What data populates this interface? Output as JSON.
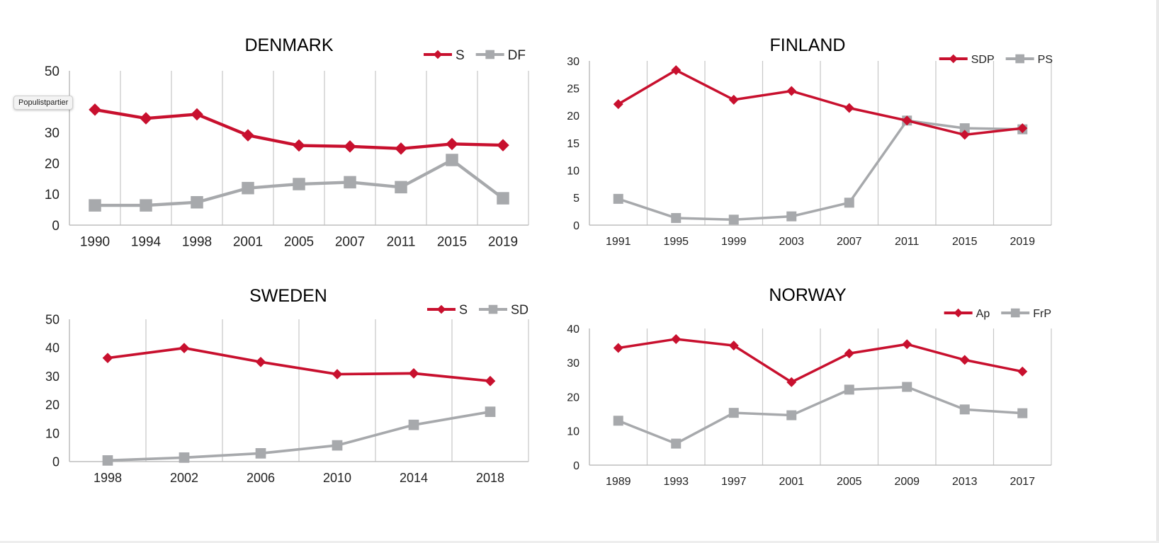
{
  "tooltip": {
    "text": "Populistpartier"
  },
  "colors": {
    "red": "#c8102e",
    "gray": "#a7a9ac",
    "grid": "#c6c6c6",
    "axis": "#bdbdbd",
    "text": "#222222"
  },
  "chart_data": [
    {
      "type": "line",
      "title": "DENMARK",
      "categories": [
        "1990",
        "1994",
        "1998",
        "2001",
        "2005",
        "2007",
        "2011",
        "2015",
        "2019"
      ],
      "ylim": [
        0,
        50
      ],
      "yticks": [
        0,
        10,
        20,
        30,
        50
      ],
      "grid": "vertical",
      "legend_position": "top-right",
      "series": [
        {
          "name": "S",
          "color": "red",
          "marker": "diamond",
          "values": [
            37.4,
            34.6,
            35.9,
            29.1,
            25.8,
            25.5,
            24.8,
            26.3,
            25.9
          ]
        },
        {
          "name": "DF",
          "color": "gray",
          "marker": "square",
          "values": [
            6.4,
            6.4,
            7.4,
            12.0,
            13.3,
            13.9,
            12.3,
            21.1,
            8.7
          ]
        }
      ]
    },
    {
      "type": "line",
      "title": "FINLAND",
      "categories": [
        "1991",
        "1995",
        "1999",
        "2003",
        "2007",
        "2011",
        "2015",
        "2019"
      ],
      "ylim": [
        0,
        30
      ],
      "yticks": [
        0,
        5,
        10,
        15,
        20,
        25,
        30
      ],
      "grid": "vertical",
      "legend_position": "top-right",
      "series": [
        {
          "name": "SDP",
          "color": "red",
          "marker": "diamond",
          "values": [
            22.1,
            28.3,
            22.9,
            24.5,
            21.4,
            19.1,
            16.5,
            17.7
          ]
        },
        {
          "name": "PS",
          "color": "gray",
          "marker": "square",
          "values": [
            4.8,
            1.3,
            1.0,
            1.6,
            4.1,
            19.1,
            17.7,
            17.5
          ]
        }
      ]
    },
    {
      "type": "line",
      "title": "SWEDEN",
      "categories": [
        "1998",
        "2002",
        "2006",
        "2010",
        "2014",
        "2018"
      ],
      "ylim": [
        0,
        50
      ],
      "yticks": [
        0,
        10,
        20,
        30,
        40,
        50
      ],
      "grid": "vertical",
      "legend_position": "top-right",
      "series": [
        {
          "name": "S",
          "color": "red",
          "marker": "diamond",
          "values": [
            36.4,
            39.9,
            35.0,
            30.7,
            31.0,
            28.3
          ]
        },
        {
          "name": "SD",
          "color": "gray",
          "marker": "square",
          "values": [
            0.4,
            1.4,
            2.9,
            5.7,
            12.9,
            17.5
          ]
        }
      ]
    },
    {
      "type": "line",
      "title": "NORWAY",
      "categories": [
        "1989",
        "1993",
        "1997",
        "2001",
        "2005",
        "2009",
        "2013",
        "2017"
      ],
      "ylim": [
        0,
        40
      ],
      "yticks": [
        0,
        10,
        20,
        30,
        40
      ],
      "grid": "vertical",
      "legend_position": "top-right",
      "series": [
        {
          "name": "Ap",
          "color": "red",
          "marker": "diamond",
          "values": [
            34.3,
            36.9,
            35.0,
            24.3,
            32.7,
            35.4,
            30.8,
            27.4
          ]
        },
        {
          "name": "FrP",
          "color": "gray",
          "marker": "square",
          "values": [
            13.0,
            6.3,
            15.3,
            14.6,
            22.1,
            22.9,
            16.3,
            15.2
          ]
        }
      ]
    }
  ]
}
